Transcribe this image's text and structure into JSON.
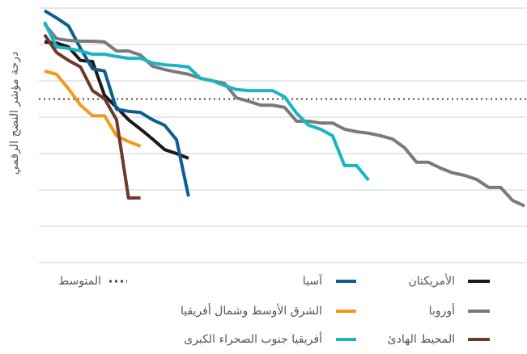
{
  "chart_data": {
    "type": "line",
    "ylabel": "درجة مؤشر النضج الرقمي",
    "ylim": [
      0,
      7
    ],
    "yticks": [
      0,
      1,
      2,
      3,
      4,
      5,
      6,
      7
    ],
    "xlim": [
      -0.5,
      40
    ],
    "grid": true,
    "average": {
      "name": "المتوسط",
      "value": 4.5,
      "color": "#6b3a2a"
    },
    "series": [
      {
        "name": "الأمريكتان",
        "color": "#1a1a1a",
        "x": [
          0,
          1,
          2,
          3,
          4,
          5,
          6,
          7,
          8,
          9,
          10,
          11,
          12
        ],
        "values": [
          6.07,
          6.04,
          5.93,
          5.56,
          5.53,
          4.6,
          4.27,
          3.93,
          3.67,
          3.4,
          3.11,
          3.0,
          2.87
        ]
      },
      {
        "name": "آسيا",
        "color": "#0b5f8f",
        "x": [
          0,
          1,
          2,
          3,
          4,
          5,
          6,
          7,
          8,
          9,
          10,
          11,
          12
        ],
        "values": [
          6.93,
          6.73,
          6.51,
          5.89,
          5.33,
          5.27,
          4.22,
          4.16,
          4.13,
          3.93,
          3.78,
          3.38,
          1.82
        ]
      },
      {
        "name": "أوروبا",
        "color": "#7a7a7a",
        "x": [
          0,
          1,
          2,
          3,
          4,
          5,
          6,
          7,
          8,
          9,
          10,
          11,
          12,
          13,
          14,
          15,
          16,
          17,
          18,
          19,
          20,
          21,
          22,
          23,
          24,
          25,
          26,
          27,
          28,
          29,
          30,
          31,
          32,
          33,
          34,
          35,
          36,
          37,
          38,
          39,
          40
        ],
        "values": [
          6.56,
          6.16,
          6.11,
          6.09,
          6.09,
          6.07,
          5.82,
          5.82,
          5.71,
          5.4,
          5.31,
          5.24,
          5.18,
          5.07,
          5.0,
          4.93,
          4.53,
          4.44,
          4.33,
          4.33,
          4.27,
          3.89,
          3.89,
          3.84,
          3.84,
          3.67,
          3.6,
          3.56,
          3.49,
          3.4,
          3.16,
          2.76,
          2.76,
          2.6,
          2.47,
          2.4,
          2.29,
          2.07,
          2.07,
          1.71,
          1.56
        ]
      },
      {
        "name": "الشرق الأوسط وشمال أفريقيا",
        "color": "#f39a1e",
        "x": [
          0,
          1,
          2,
          3,
          4,
          5,
          6,
          7,
          8
        ],
        "values": [
          5.27,
          5.18,
          4.78,
          4.33,
          4.04,
          4.04,
          3.49,
          3.33,
          3.2
        ]
      },
      {
        "name": "المحيط الهادئ",
        "color": "#6b3a2a",
        "x": [
          0,
          1,
          2,
          3,
          4,
          5,
          6,
          7,
          8
        ],
        "values": [
          6.27,
          5.78,
          5.56,
          5.38,
          4.73,
          4.51,
          3.93,
          1.78,
          1.78
        ]
      },
      {
        "name": "أفريقيا جنوب الصحراء الكبرى",
        "color": "#19b5c0",
        "x": [
          0,
          1,
          2,
          3,
          4,
          5,
          6,
          7,
          8,
          9,
          10,
          11,
          12,
          13,
          14,
          15,
          16,
          17,
          18,
          19,
          20,
          21,
          22,
          23,
          24,
          25,
          26,
          27
        ],
        "values": [
          6.62,
          5.93,
          5.89,
          5.82,
          5.73,
          5.73,
          5.67,
          5.62,
          5.62,
          5.49,
          5.44,
          5.42,
          5.38,
          5.07,
          5.0,
          4.87,
          4.76,
          4.73,
          4.73,
          4.73,
          4.56,
          4.11,
          3.78,
          3.67,
          3.49,
          2.67,
          2.67,
          2.27
        ]
      }
    ]
  }
}
